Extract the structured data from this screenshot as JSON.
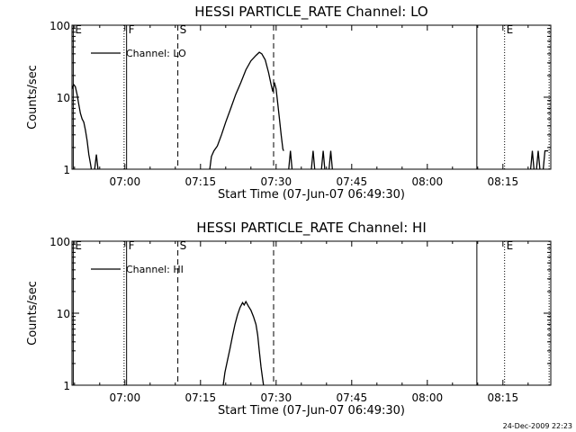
{
  "chart_data": [
    {
      "type": "line",
      "title": "HESSI PARTICLE_RATE Channel: LO",
      "xlabel": "Start Time (07-Jun-07 06:49:30)",
      "ylabel": "Counts/sec",
      "y_scale": "log",
      "ylim": [
        1,
        100
      ],
      "y_ticks": [
        1,
        10,
        100
      ],
      "y_tick_labels": [
        "1",
        "10",
        "100"
      ],
      "xlim": [
        "06:49:30",
        "08:24:30"
      ],
      "x_ticks": [
        "07:00",
        "07:15",
        "07:30",
        "07:45",
        "08:00",
        "08:15"
      ],
      "grid": false,
      "legend": {
        "placement": "top-left",
        "entries": [
          "Channel: LO"
        ]
      },
      "series": [
        {
          "name": "Channel: LO",
          "segments": [
            [
              [
                "06:49:30",
                13
              ],
              [
                "06:49:50",
                15
              ],
              [
                "06:50:10",
                14
              ],
              [
                "06:50:30",
                11
              ],
              [
                "06:50:50",
                8
              ],
              [
                "06:51:10",
                6
              ],
              [
                "06:51:30",
                5
              ],
              [
                "06:51:50",
                4.5
              ],
              [
                "06:52:10",
                3.5
              ],
              [
                "06:52:30",
                2.5
              ],
              [
                "06:52:50",
                1.6
              ],
              [
                "06:53:10",
                1.2
              ],
              [
                "06:53:20",
                1
              ]
            ],
            [
              [
                "06:54:00",
                1
              ],
              [
                "06:54:20",
                1.6
              ],
              [
                "06:54:40",
                1
              ]
            ],
            [
              [
                "07:16:50",
                1
              ],
              [
                "07:17:10",
                1.5
              ],
              [
                "07:17:40",
                1.8
              ],
              [
                "07:18:20",
                2.1
              ],
              [
                "07:19:10",
                3
              ],
              [
                "07:20:00",
                4.5
              ],
              [
                "07:21:00",
                7
              ],
              [
                "07:22:00",
                11
              ],
              [
                "07:23:00",
                16
              ],
              [
                "07:24:00",
                24
              ],
              [
                "07:25:00",
                32
              ],
              [
                "07:26:00",
                38
              ],
              [
                "07:26:40",
                42
              ],
              [
                "07:27:10",
                40
              ],
              [
                "07:27:50",
                33
              ],
              [
                "07:28:30",
                22
              ],
              [
                "07:29:00",
                15
              ],
              [
                "07:29:20",
                12
              ],
              [
                "07:29:40",
                16
              ],
              [
                "07:30:00",
                13
              ],
              [
                "07:30:20",
                8
              ],
              [
                "07:30:40",
                5
              ],
              [
                "07:31:00",
                3
              ],
              [
                "07:31:20",
                1.9
              ],
              [
                "07:31:30",
                1.8
              ]
            ],
            [
              [
                "07:32:30",
                1
              ],
              [
                "07:32:50",
                1.8
              ],
              [
                "07:33:10",
                1
              ]
            ],
            [
              [
                "07:37:00",
                1
              ],
              [
                "07:37:20",
                1.8
              ],
              [
                "07:37:40",
                1
              ]
            ],
            [
              [
                "07:39:00",
                1
              ],
              [
                "07:39:20",
                1.8
              ],
              [
                "07:39:40",
                1
              ]
            ],
            [
              [
                "07:40:30",
                1
              ],
              [
                "07:40:50",
                1.8
              ],
              [
                "07:41:10",
                1
              ]
            ],
            [
              [
                "08:20:30",
                1
              ],
              [
                "08:20:50",
                1.8
              ],
              [
                "08:21:10",
                1
              ]
            ],
            [
              [
                "08:21:40",
                1
              ],
              [
                "08:22:00",
                1.8
              ],
              [
                "08:22:20",
                1
              ]
            ],
            [
              [
                "08:23:00",
                1
              ],
              [
                "08:23:20",
                1.8
              ],
              [
                "08:24:00",
                1.8
              ]
            ]
          ]
        }
      ],
      "markers": [
        {
          "time": "06:49:45",
          "style": "solid",
          "label": "E"
        },
        {
          "time": "06:59:50",
          "style": "dotted",
          "label": ""
        },
        {
          "time": "07:00:20",
          "style": "solid",
          "label": "F"
        },
        {
          "time": "07:10:30",
          "style": "dashed",
          "label": "S"
        },
        {
          "time": "07:29:30",
          "style": "dashed",
          "label": ""
        },
        {
          "time": "08:09:50",
          "style": "solid",
          "label": ""
        },
        {
          "time": "08:15:20",
          "style": "dotted",
          "label": "E"
        },
        {
          "time": "08:24:10",
          "style": "dotted",
          "label": ""
        }
      ]
    },
    {
      "type": "line",
      "title": "HESSI PARTICLE_RATE Channel: HI",
      "xlabel": "Start Time (07-Jun-07 06:49:30)",
      "ylabel": "Counts/sec",
      "y_scale": "log",
      "ylim": [
        1,
        100
      ],
      "y_ticks": [
        1,
        10,
        100
      ],
      "y_tick_labels": [
        "1",
        "10",
        "100"
      ],
      "xlim": [
        "06:49:30",
        "08:24:30"
      ],
      "x_ticks": [
        "07:00",
        "07:15",
        "07:30",
        "07:45",
        "08:00",
        "08:15"
      ],
      "grid": false,
      "legend": {
        "placement": "top-left",
        "entries": [
          "Channel: HI"
        ]
      },
      "series": [
        {
          "name": "Channel: HI",
          "segments": [
            [
              [
                "07:19:30",
                1
              ],
              [
                "07:19:50",
                1.5
              ],
              [
                "07:20:20",
                2.2
              ],
              [
                "07:20:50",
                3.2
              ],
              [
                "07:21:20",
                4.8
              ],
              [
                "07:21:50",
                7
              ],
              [
                "07:22:20",
                9.5
              ],
              [
                "07:22:50",
                12
              ],
              [
                "07:23:20",
                14
              ],
              [
                "07:23:40",
                13
              ],
              [
                "07:24:00",
                14.5
              ],
              [
                "07:24:30",
                12.5
              ],
              [
                "07:25:00",
                11
              ],
              [
                "07:25:30",
                9
              ],
              [
                "07:26:00",
                7
              ],
              [
                "07:26:20",
                5
              ],
              [
                "07:26:40",
                3
              ],
              [
                "07:27:00",
                1.8
              ],
              [
                "07:27:20",
                1.2
              ],
              [
                "07:27:30",
                1
              ]
            ]
          ]
        }
      ],
      "markers": [
        {
          "time": "06:49:45",
          "style": "solid",
          "label": "E"
        },
        {
          "time": "06:59:50",
          "style": "dotted",
          "label": ""
        },
        {
          "time": "07:00:20",
          "style": "solid",
          "label": "F"
        },
        {
          "time": "07:10:30",
          "style": "dashed",
          "label": "S"
        },
        {
          "time": "07:29:30",
          "style": "dashed",
          "label": ""
        },
        {
          "time": "08:09:50",
          "style": "solid",
          "label": ""
        },
        {
          "time": "08:15:20",
          "style": "dotted",
          "label": "E"
        },
        {
          "time": "08:24:10",
          "style": "dotted",
          "label": ""
        }
      ]
    }
  ],
  "footer": {
    "timestamp": "24-Dec-2009 22:23"
  }
}
